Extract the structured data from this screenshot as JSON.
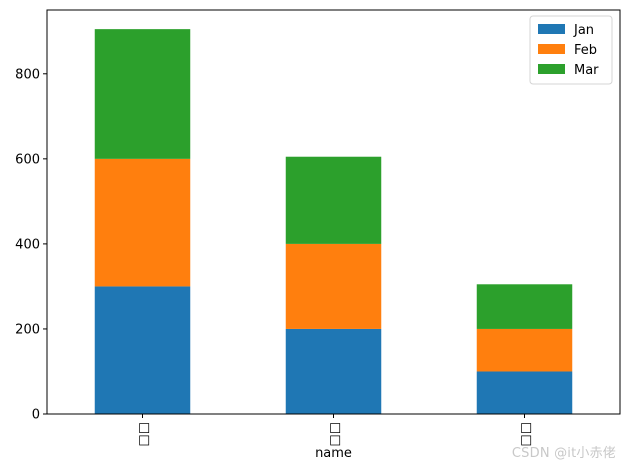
{
  "chart_data": {
    "type": "bar",
    "stacked": true,
    "categories": [
      "□□",
      "□□",
      "□□"
    ],
    "xlabel": "name",
    "ylabel": "",
    "title": "",
    "ylim": [
      0,
      950
    ],
    "yticks": [
      0,
      200,
      400,
      600,
      800
    ],
    "series": [
      {
        "name": "Jan",
        "color": "#1f77b4",
        "values": [
          300,
          200,
          100
        ]
      },
      {
        "name": "Feb",
        "color": "#ff7f0e",
        "values": [
          300,
          200,
          100
        ]
      },
      {
        "name": "Mar",
        "color": "#2ca02c",
        "values": [
          305,
          205,
          105
        ]
      }
    ],
    "legend_position": "top-right",
    "grid": false
  },
  "watermark": "CSDN @it小赤佬"
}
